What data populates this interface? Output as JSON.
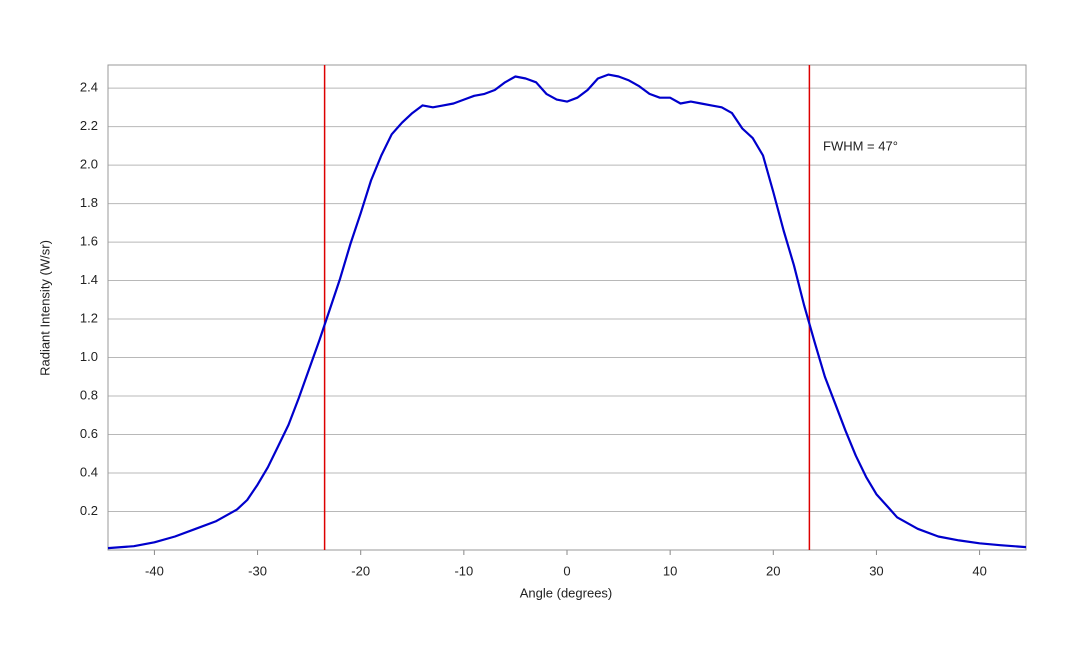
{
  "chart_data": {
    "type": "line",
    "x_label": "Angle (degrees)",
    "y_label": "Radiant Intensity (W/sr)",
    "annotation": "FWHM = 47°",
    "x": [
      -44.5,
      -42,
      -40,
      -38,
      -36,
      -34,
      -32,
      -31,
      -30,
      -29,
      -28,
      -27,
      -26,
      -25,
      -24,
      -23,
      -22,
      -21,
      -20,
      -19,
      -18,
      -17,
      -16,
      -15,
      -14,
      -13,
      -12,
      -11,
      -10,
      -9,
      -8,
      -7,
      -6,
      -5,
      -4,
      -3,
      -2,
      -1,
      0,
      1,
      2,
      3,
      4,
      5,
      6,
      7,
      8,
      9,
      10,
      11,
      12,
      13,
      14,
      15,
      16,
      17,
      18,
      19,
      20,
      21,
      22,
      23,
      24,
      25,
      26,
      27,
      28,
      29,
      30,
      31,
      32,
      34,
      36,
      38,
      40,
      42,
      44.5
    ],
    "series": [
      {
        "color": "#0000cc",
        "values": [
          0.01,
          0.02,
          0.04,
          0.07,
          0.11,
          0.15,
          0.21,
          0.26,
          0.34,
          0.43,
          0.54,
          0.65,
          0.79,
          0.94,
          1.09,
          1.25,
          1.41,
          1.59,
          1.75,
          1.92,
          2.05,
          2.16,
          2.22,
          2.27,
          2.31,
          2.3,
          2.31,
          2.32,
          2.34,
          2.36,
          2.37,
          2.39,
          2.43,
          2.46,
          2.45,
          2.43,
          2.37,
          2.34,
          2.33,
          2.35,
          2.39,
          2.45,
          2.47,
          2.46,
          2.44,
          2.41,
          2.37,
          2.35,
          2.35,
          2.32,
          2.33,
          2.32,
          2.31,
          2.3,
          2.27,
          2.19,
          2.14,
          2.05,
          1.86,
          1.66,
          1.48,
          1.27,
          1.08,
          0.9,
          0.76,
          0.62,
          0.49,
          0.38,
          0.29,
          0.23,
          0.17,
          0.11,
          0.07,
          0.05,
          0.035,
          0.025,
          0.015
        ]
      }
    ],
    "vlines": [
      -23.5,
      23.5
    ],
    "vline_color": "#dd0000",
    "xlim": [
      -44.5,
      44.5
    ],
    "ylim": [
      0,
      2.52
    ],
    "xticks": [
      -40,
      -30,
      -20,
      -10,
      0,
      10,
      20,
      30,
      40
    ],
    "yticks": [
      0.2,
      0.4,
      0.6,
      0.8,
      {
        "value": 1.0,
        "label": "1.0"
      },
      1.2,
      1.4,
      1.6,
      1.8,
      {
        "value": 2.0,
        "label": "2.0"
      },
      2.2,
      2.4
    ],
    "grid": true
  }
}
